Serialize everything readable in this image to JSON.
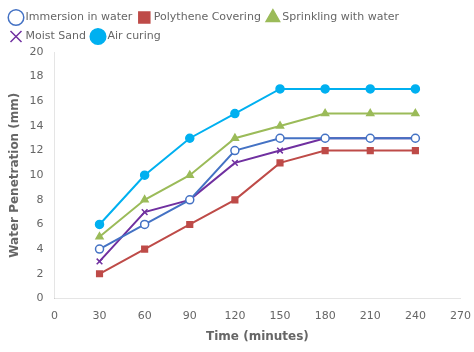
{
  "chart_data": {
    "type": "line",
    "x": [
      30,
      60,
      90,
      120,
      150,
      180,
      210,
      240
    ],
    "series": [
      {
        "name": "Immersion in water",
        "color": "#4472C4",
        "marker": "open-circle",
        "values": [
          4,
          6,
          8,
          12,
          13,
          13,
          13,
          13
        ]
      },
      {
        "name": "Polythene Covering",
        "color": "#BE4B48",
        "marker": "square",
        "values": [
          2,
          4,
          6,
          8,
          11,
          12,
          12,
          12
        ]
      },
      {
        "name": "Sprinkling with water",
        "color": "#9BBB59",
        "marker": "triangle",
        "values": [
          5,
          8,
          10,
          13,
          14,
          15,
          15,
          15
        ]
      },
      {
        "name": "Moist Sand",
        "color": "#7030A0",
        "marker": "cross",
        "values": [
          3,
          7,
          8,
          11,
          12,
          13,
          13,
          13
        ]
      },
      {
        "name": "Air curing",
        "color": "#00B0F0",
        "marker": "circle",
        "values": [
          6,
          10,
          13,
          15,
          17,
          17,
          17,
          17
        ]
      }
    ],
    "xlabel": "Time (minutes)",
    "ylabel": "Water Penetration (mm)",
    "xlim": [
      0,
      270
    ],
    "ylim": [
      0,
      20
    ],
    "xticks": [
      0,
      30,
      60,
      90,
      120,
      150,
      180,
      210,
      240,
      270
    ],
    "yticks": [
      0,
      2,
      4,
      6,
      8,
      10,
      12,
      14,
      16,
      18,
      20
    ],
    "grid": false,
    "legend": "top-left"
  }
}
